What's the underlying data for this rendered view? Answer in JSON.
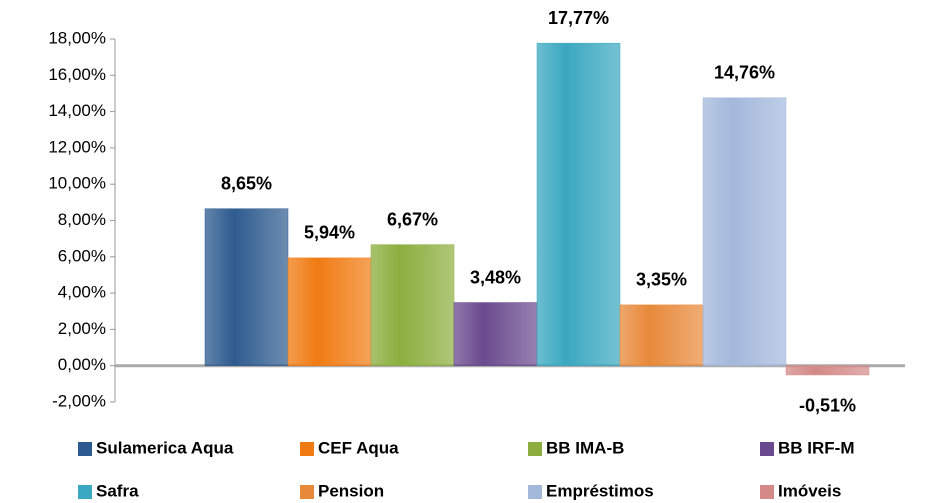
{
  "chart_data": {
    "type": "bar",
    "categories": [
      "Sulamerica Aqua",
      "CEF Aqua",
      "BB IMA-B",
      "BB IRF-M",
      "Safra",
      "Pension",
      "Empréstimos",
      "Imóveis"
    ],
    "values": [
      8.65,
      5.94,
      6.67,
      3.48,
      17.77,
      3.35,
      14.76,
      -0.51
    ],
    "value_labels": [
      "8,65%",
      "5,94%",
      "6,67%",
      "3,48%",
      "17,77%",
      "3,35%",
      "14,76%",
      "-0,51%"
    ],
    "colors": [
      "#2e5b8f",
      "#f07b12",
      "#8cae3e",
      "#6a4a8e",
      "#3aa8c0",
      "#e8893a",
      "#a4b8dc",
      "#d38a88"
    ],
    "ylim": [
      -2,
      18
    ],
    "yticks": [
      {
        "value": -2,
        "label": "-2,00%"
      },
      {
        "value": 0,
        "label": "0,00%"
      },
      {
        "value": 2,
        "label": "2,00%"
      },
      {
        "value": 4,
        "label": "4,00%"
      },
      {
        "value": 6,
        "label": "6,00%"
      },
      {
        "value": 8,
        "label": "8,00%"
      },
      {
        "value": 10,
        "label": "10,00%"
      },
      {
        "value": 12,
        "label": "12,00%"
      },
      {
        "value": 14,
        "label": "14,00%"
      },
      {
        "value": 16,
        "label": "16,00%"
      },
      {
        "value": 18,
        "label": "18,00%"
      }
    ],
    "grid": false
  }
}
